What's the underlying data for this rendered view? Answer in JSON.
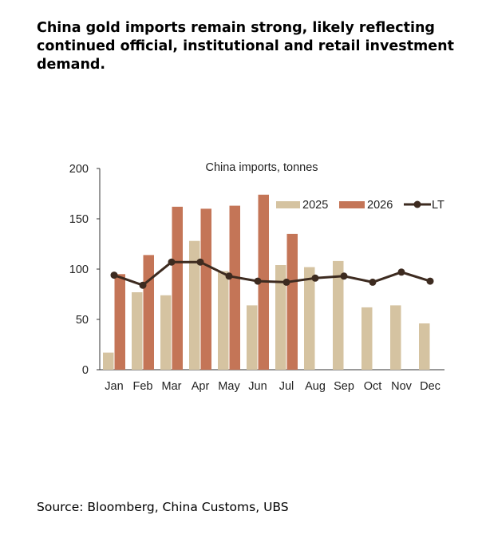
{
  "headline": "China gold imports remain strong, likely reflecting continued official, institutional and retail investment demand.",
  "source": "Source: Bloomberg, China Customs, UBS",
  "colors": {
    "series2025": "#d5c3a1",
    "series2026": "#c47557",
    "lt": "#3d2b20"
  },
  "chart_data": {
    "type": "bar",
    "title": "China imports, tonnes",
    "categories": [
      "Jan",
      "Feb",
      "Mar",
      "Apr",
      "May",
      "Jun",
      "Jul",
      "Aug",
      "Sep",
      "Oct",
      "Nov",
      "Dec"
    ],
    "ylim": [
      0,
      200
    ],
    "yticks": [
      0,
      50,
      100,
      150,
      200
    ],
    "legend_position": "top-right",
    "series": [
      {
        "name": "2025",
        "kind": "bar",
        "values": [
          17,
          77,
          74,
          128,
          98,
          64,
          104,
          102,
          108,
          62,
          64,
          46
        ]
      },
      {
        "name": "2026",
        "kind": "bar",
        "values": [
          95,
          114,
          162,
          160,
          163,
          174,
          135,
          null,
          null,
          null,
          null,
          null
        ]
      },
      {
        "name": "LT",
        "kind": "line",
        "values": [
          94,
          84,
          107,
          107,
          93,
          88,
          87,
          91,
          93,
          87,
          97,
          88
        ]
      }
    ]
  }
}
